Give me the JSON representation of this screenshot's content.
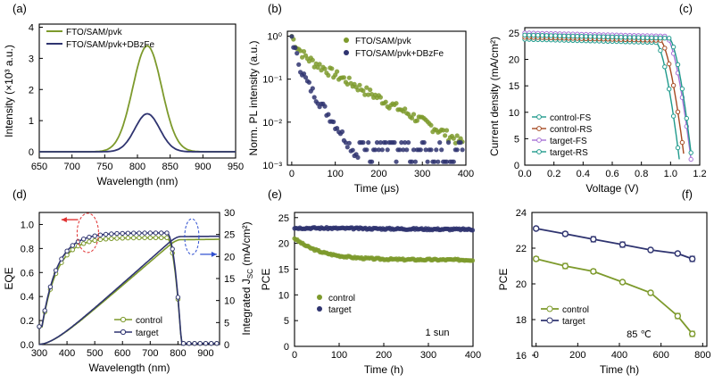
{
  "colors": {
    "control": "#7d9a2c",
    "target": "#2f3470",
    "ctrlRS": "#a54a22",
    "tgtFS": "#a772d6",
    "tgtRS": "#1f9a8c",
    "arrowRed": "#e03030",
    "arrowBlue": "#3050d0"
  },
  "chart_data": [
    {
      "panel": "a",
      "type": "line",
      "panel_label": "(a)",
      "xlabel": "Wavelength (nm)",
      "ylabel": "Intensity (×10³ a.u.)",
      "xlim": [
        650,
        950
      ],
      "ylim": [
        -0.2,
        4.1
      ],
      "xticks": [
        "650",
        "700",
        "750",
        "800",
        "850",
        "900",
        "950"
      ],
      "yticks": [
        "0",
        "1",
        "2",
        "3",
        "4"
      ],
      "series": [
        {
          "name": "FTO/SAM/pvk",
          "color": "control",
          "peak": 3.4,
          "center": 815,
          "width": 28,
          "shape": "gauss"
        },
        {
          "name": "FTO/SAM/pvk+DBzFe",
          "color": "target",
          "peak": 1.22,
          "center": 815,
          "width": 24,
          "shape": "gauss"
        }
      ]
    },
    {
      "panel": "b",
      "type": "scatter",
      "panel_label": "(b)",
      "xlabel": "Time (μs)",
      "ylabel": "Norm. PL intensity (a.u.)",
      "xlim": [
        -10,
        400
      ],
      "ylim_log": [
        0.001,
        1.3
      ],
      "xticks": [
        "0",
        "100",
        "200",
        "300",
        "400"
      ],
      "yticks": [
        "10⁰",
        "10⁻¹",
        "10⁻²",
        "10⁻³"
      ],
      "series": [
        {
          "name": "FTO/SAM/pvk",
          "color": "control",
          "tau1": 12,
          "tau2": 80,
          "a1": 0.55,
          "floor": 0.0015,
          "xmax": 395
        },
        {
          "name": "FTO/SAM/pvk+DBzFe",
          "color": "target",
          "tau1": 8,
          "tau2": 30,
          "a1": 0.75,
          "floor": 0.0012,
          "xmax": 395
        }
      ]
    },
    {
      "panel": "c",
      "type": "line",
      "panel_label": "(c)",
      "xlabel": "Voltage (V)",
      "ylabel": "Current density (mA/cm²)",
      "xlim": [
        0,
        1.2
      ],
      "ylim": [
        0,
        26
      ],
      "xticks": [
        "0.0",
        "0.2",
        "0.4",
        "0.6",
        "0.8",
        "1.0",
        "1.2"
      ],
      "yticks": [
        "0",
        "5",
        "10",
        "15",
        "20",
        "25"
      ],
      "series": [
        {
          "name": "control-FS",
          "color": "tgtRS",
          "jsc": 23.8,
          "voc": 1.065,
          "knee": 0.9
        },
        {
          "name": "control-RS",
          "color": "ctrlRS",
          "jsc": 24.2,
          "voc": 1.1,
          "knee": 0.93
        },
        {
          "name": "target-FS",
          "color": "tgtFS",
          "jsc": 25.0,
          "voc": 1.145,
          "knee": 0.97
        },
        {
          "name": "target-RS",
          "color": "tgtRS",
          "jsc": 24.6,
          "voc": 1.15,
          "knee": 0.99
        }
      ]
    },
    {
      "panel": "d",
      "type": "line",
      "panel_label": "(d)",
      "xlabel": "Wavelength (nm)",
      "ylabel": "EQE",
      "ylabel_right": "Integrated J",
      "ylabel_right_sub": "SC",
      "ylabel_right_unit": " (mA/cm²)",
      "xlim": [
        300,
        950
      ],
      "ylim": [
        0,
        1.1
      ],
      "ylim_right": [
        0,
        30
      ],
      "xticks": [
        "300",
        "400",
        "500",
        "600",
        "700",
        "800",
        "900"
      ],
      "yticks": [
        "0.0",
        "0.2",
        "0.4",
        "0.6",
        "0.8",
        "1.0"
      ],
      "yticks_right": [
        "0",
        "5",
        "10",
        "15",
        "20",
        "25",
        "30"
      ],
      "series": [
        {
          "name": "control",
          "color": "control",
          "plateau": 0.89,
          "integrated_max": 23.9
        },
        {
          "name": "target",
          "color": "target",
          "plateau": 0.93,
          "integrated_max": 24.6
        }
      ]
    },
    {
      "panel": "e",
      "type": "scatter",
      "panel_label": "(e)",
      "xlabel": "Time (h)",
      "ylabel": "PCE",
      "annotation": "1 sun",
      "xlim": [
        0,
        400
      ],
      "ylim": [
        0,
        26
      ],
      "xticks": [
        "0",
        "100",
        "200",
        "300",
        "400"
      ],
      "yticks": [
        "0",
        "5",
        "10",
        "15",
        "20",
        "25"
      ],
      "series": [
        {
          "name": "control",
          "color": "control",
          "start": 21.0,
          "end": 16.8
        },
        {
          "name": "target",
          "color": "target",
          "start": 23.0,
          "end": 22.7
        }
      ]
    },
    {
      "panel": "f",
      "type": "line",
      "panel_label": "(f)",
      "xlabel": "Time (h)",
      "ylabel": "PCE",
      "annotation": "85 ℃",
      "xlim": [
        -20,
        820
      ],
      "ylim": [
        16.5,
        24
      ],
      "xticks": [
        "0",
        "200",
        "400",
        "600",
        "800"
      ],
      "yticks": [
        "16",
        "18",
        "20",
        "22",
        "24"
      ],
      "x": [
        0,
        140,
        275,
        415,
        550,
        680,
        750
      ],
      "series": [
        {
          "name": "control",
          "color": "control",
          "values": [
            21.4,
            21.0,
            20.7,
            20.1,
            19.5,
            18.2,
            17.2
          ],
          "err": [
            0.12,
            0.15,
            0.12,
            0.1,
            0.1,
            0.15,
            0.15
          ]
        },
        {
          "name": "target",
          "color": "target",
          "values": [
            23.1,
            22.8,
            22.5,
            22.2,
            21.9,
            21.7,
            21.4
          ],
          "err": [
            0.1,
            0.12,
            0.15,
            0.15,
            0.1,
            0.1,
            0.15
          ]
        }
      ]
    }
  ]
}
